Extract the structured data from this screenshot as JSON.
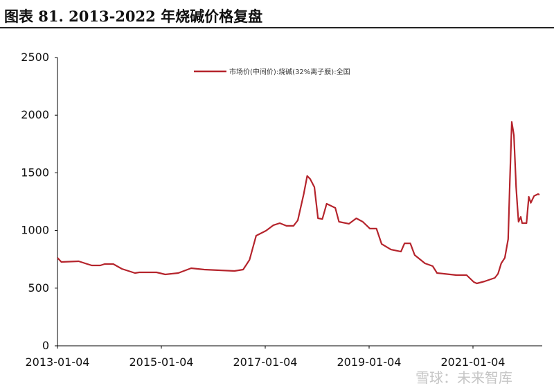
{
  "header": {
    "title": "图表 81. 2013-2022 年烧碱价格复盘"
  },
  "watermark": "雪球：未来智库",
  "chart_data": {
    "type": "line",
    "title": "",
    "xlabel": "",
    "ylabel": "",
    "ylim": [
      0,
      2500
    ],
    "yticks": [
      "0",
      "500",
      "1000",
      "1500",
      "2000",
      "2500"
    ],
    "xlim": [
      "2013-01-04",
      "2022-05-01"
    ],
    "xticks": [
      "2013-01-04",
      "2015-01-04",
      "2017-01-04",
      "2019-01-04",
      "2021-01-04"
    ],
    "grid": false,
    "legend": "top-center",
    "color": "#b5242c",
    "series": [
      {
        "name": "市场价(中间价):烧碱(32%离子膜):全国",
        "points": [
          [
            "2013-01-04",
            763
          ],
          [
            "2013-02-01",
            727
          ],
          [
            "2013-06-01",
            733
          ],
          [
            "2013-09-01",
            697
          ],
          [
            "2013-11-01",
            697
          ],
          [
            "2013-12-01",
            709
          ],
          [
            "2014-02-01",
            709
          ],
          [
            "2014-04-01",
            667
          ],
          [
            "2014-07-01",
            631
          ],
          [
            "2014-08-01",
            637
          ],
          [
            "2014-12-01",
            637
          ],
          [
            "2015-02-01",
            619
          ],
          [
            "2015-05-01",
            631
          ],
          [
            "2015-08-01",
            673
          ],
          [
            "2015-11-01",
            661
          ],
          [
            "2016-06-01",
            649
          ],
          [
            "2016-08-01",
            661
          ],
          [
            "2016-09-15",
            745
          ],
          [
            "2016-11-01",
            955
          ],
          [
            "2017-01-10",
            998
          ],
          [
            "2017-03-01",
            1046
          ],
          [
            "2017-04-15",
            1064
          ],
          [
            "2017-06-01",
            1040
          ],
          [
            "2017-07-20",
            1040
          ],
          [
            "2017-08-20",
            1088
          ],
          [
            "2017-10-01",
            1316
          ],
          [
            "2017-10-25",
            1473
          ],
          [
            "2017-11-15",
            1448
          ],
          [
            "2017-12-15",
            1376
          ],
          [
            "2018-01-10",
            1106
          ],
          [
            "2018-02-10",
            1100
          ],
          [
            "2018-03-10",
            1232
          ],
          [
            "2018-05-10",
            1196
          ],
          [
            "2018-06-05",
            1076
          ],
          [
            "2018-08-15",
            1058
          ],
          [
            "2018-10-05",
            1106
          ],
          [
            "2018-11-20",
            1076
          ],
          [
            "2019-01-10",
            1016
          ],
          [
            "2019-02-25",
            1016
          ],
          [
            "2019-04-01",
            883
          ],
          [
            "2019-06-05",
            835
          ],
          [
            "2019-08-15",
            817
          ],
          [
            "2019-09-10",
            889
          ],
          [
            "2019-10-20",
            889
          ],
          [
            "2019-11-20",
            787
          ],
          [
            "2020-02-01",
            715
          ],
          [
            "2020-03-25",
            691
          ],
          [
            "2020-04-25",
            631
          ],
          [
            "2020-09-10",
            613
          ],
          [
            "2020-11-20",
            613
          ],
          [
            "2021-01-10",
            553
          ],
          [
            "2021-02-01",
            541
          ],
          [
            "2021-03-25",
            559
          ],
          [
            "2021-06-05",
            589
          ],
          [
            "2021-06-28",
            625
          ],
          [
            "2021-07-20",
            715
          ],
          [
            "2021-08-15",
            763
          ],
          [
            "2021-09-08",
            925
          ],
          [
            "2021-09-20",
            1436
          ],
          [
            "2021-10-03",
            1941
          ],
          [
            "2021-10-18",
            1827
          ],
          [
            "2021-11-03",
            1376
          ],
          [
            "2021-11-13",
            1196
          ],
          [
            "2021-11-20",
            1076
          ],
          [
            "2021-12-05",
            1118
          ],
          [
            "2021-12-15",
            1064
          ],
          [
            "2022-01-15",
            1064
          ],
          [
            "2022-02-01",
            1292
          ],
          [
            "2022-02-15",
            1240
          ],
          [
            "2022-03-08",
            1300
          ],
          [
            "2022-04-05",
            1316
          ],
          [
            "2022-04-15",
            1310
          ]
        ]
      }
    ]
  }
}
